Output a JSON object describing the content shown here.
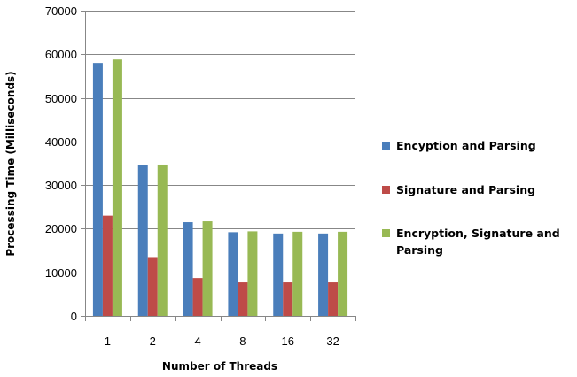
{
  "chart_data": {
    "type": "bar",
    "title": "",
    "xlabel": "Number of Threads",
    "ylabel": "Processing Time (Milliseconds)",
    "categories": [
      "1",
      "2",
      "4",
      "8",
      "16",
      "32"
    ],
    "ylim": [
      0,
      70000
    ],
    "yticks": [
      0,
      10000,
      20000,
      30000,
      40000,
      50000,
      60000,
      70000
    ],
    "grid": true,
    "legend_position": "right",
    "series": [
      {
        "name": "Encyption and Parsing",
        "color": "#4a7ebb",
        "values": [
          58000,
          34500,
          21500,
          19200,
          18900,
          18900
        ]
      },
      {
        "name": "Signature and Parsing",
        "color": "#be4b48",
        "values": [
          23000,
          13500,
          8700,
          7700,
          7700,
          7700
        ]
      },
      {
        "name": "Encryption, Signature and Parsing",
        "name_lines": [
          "Encryption, Signature and",
          "Parsing"
        ],
        "color": "#98b954",
        "values": [
          58800,
          34700,
          21700,
          19400,
          19300,
          19300
        ]
      }
    ]
  }
}
